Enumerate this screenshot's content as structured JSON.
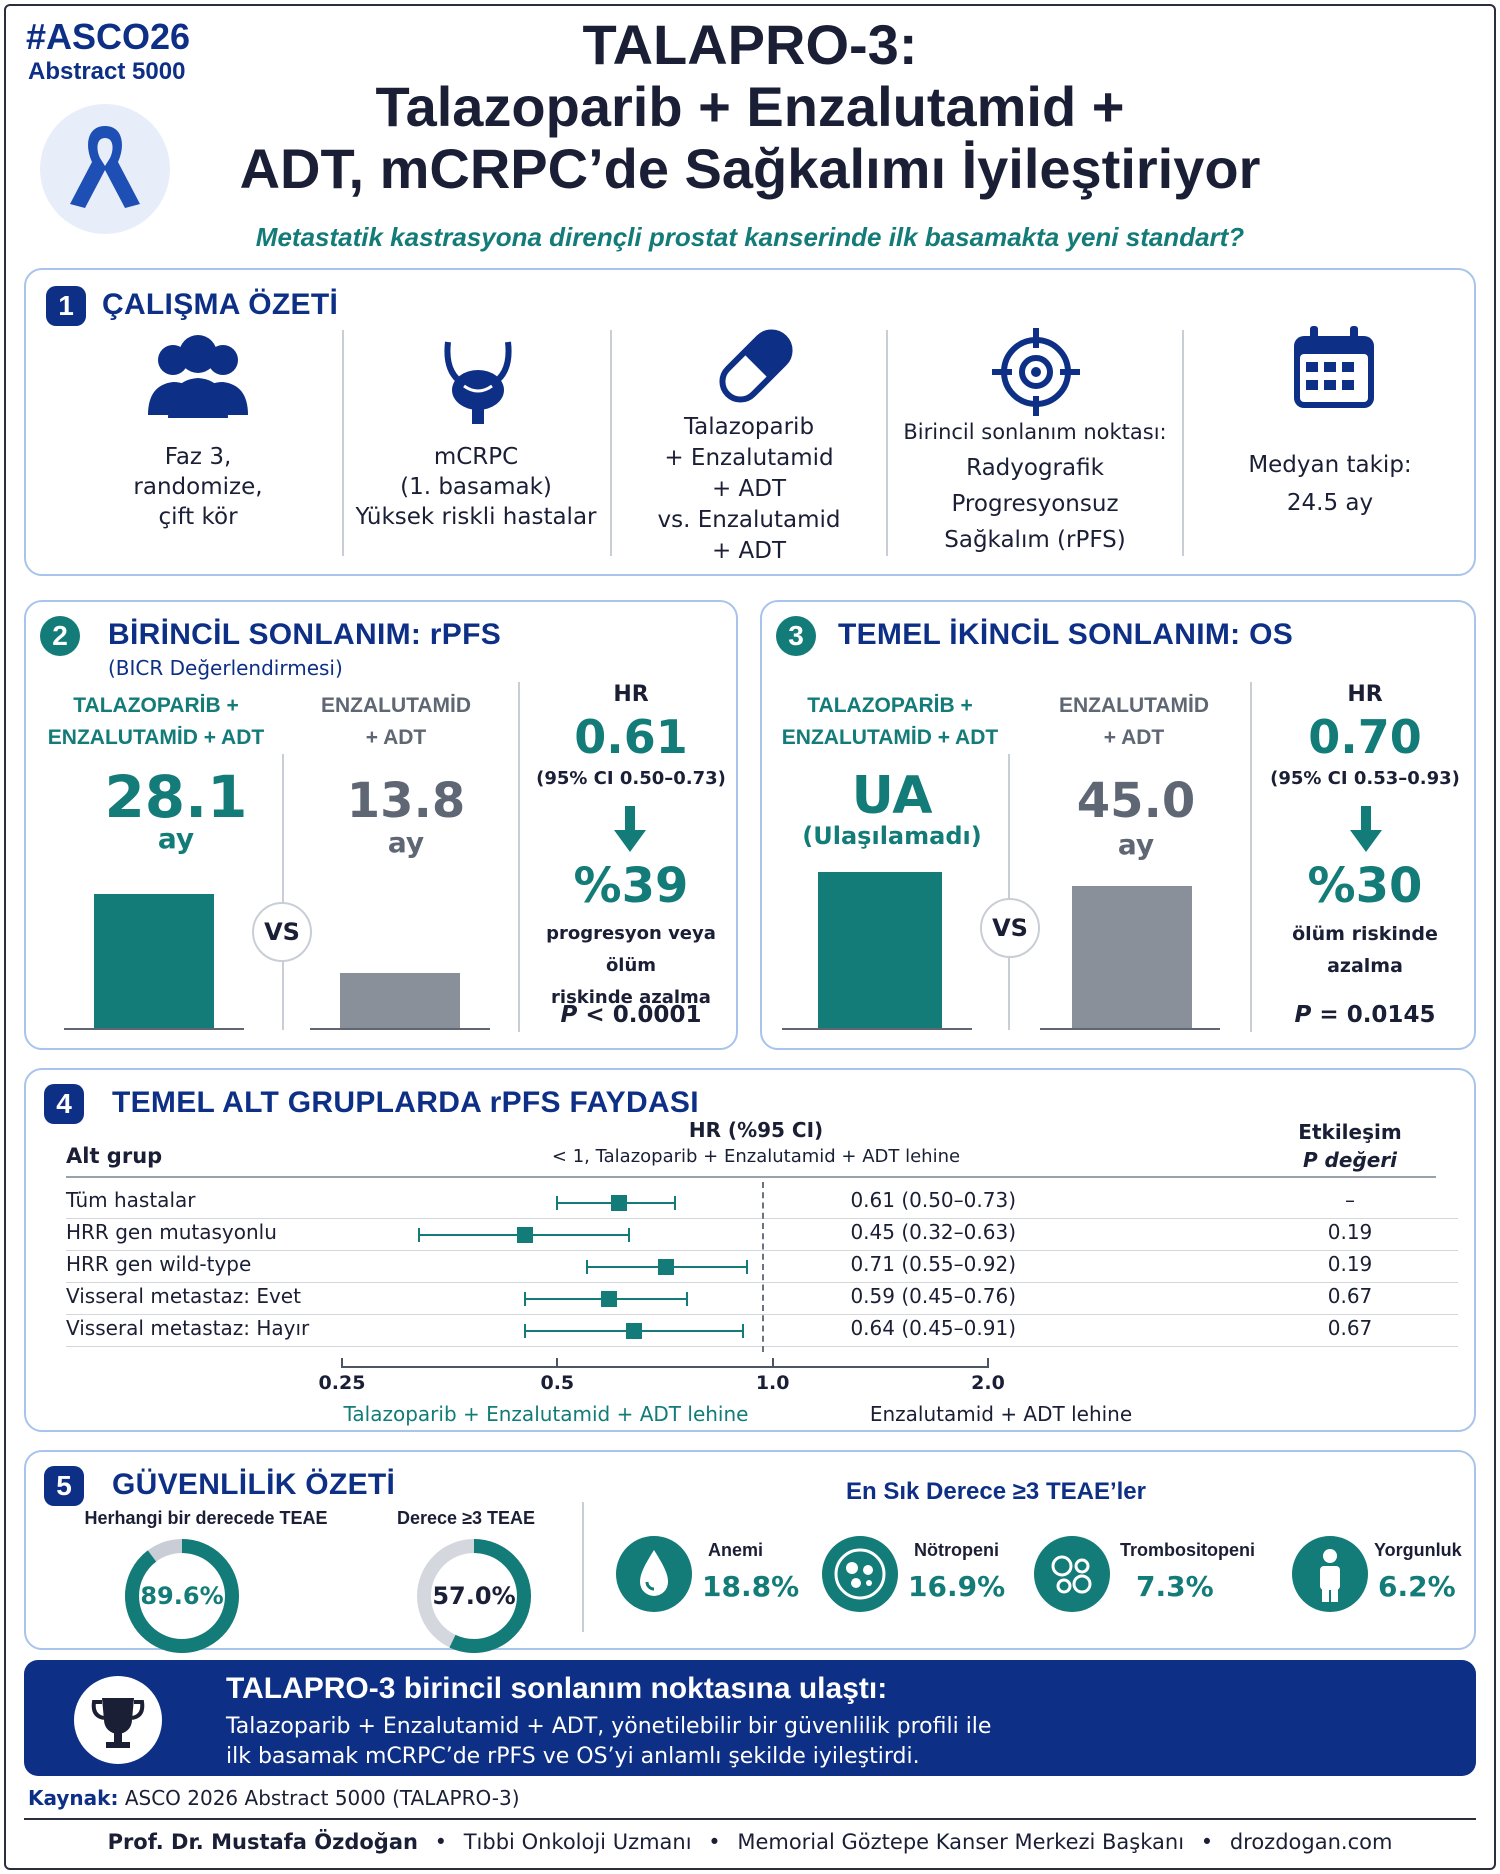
{
  "header": {
    "hashtag": "#ASCO26",
    "abstract": "Abstract 5000",
    "title_line1": "TALAPRO-3:",
    "title_line2": "Talazoparib + Enzalutamid +",
    "title_line3": "ADT, mCRPC’de Sağkalımı İyileştiriyor",
    "subtitle": "Metastatik kastrasyona dirençli prostat kanserinde ilk basamakta yeni standart?"
  },
  "overview": {
    "number": "1",
    "title": "ÇALIŞMA ÖZETİ",
    "items": [
      {
        "icon": "people-icon",
        "lines": [
          "Faz 3,",
          "randomize,",
          "çift kör"
        ]
      },
      {
        "icon": "prostate-icon",
        "lines": [
          "mCRPC",
          "(1. basamak)",
          "Yüksek riskli hastalar"
        ]
      },
      {
        "icon": "capsule-icon",
        "lines": [
          "Talazoparib",
          "+ Enzalutamid",
          "+ ADT",
          "vs. Enzalutamid",
          "+ ADT"
        ]
      },
      {
        "icon": "target-icon",
        "lines": [
          "Birincil sonlanım noktası:",
          "Radyografik",
          "Progresyonsuz",
          "Sağkalım (rPFS)"
        ]
      },
      {
        "icon": "calendar-icon",
        "lines": [
          "Medyan takip:",
          "24.5 ay"
        ]
      }
    ]
  },
  "rpfs": {
    "number": "2",
    "title": "BİRİNCİL SONLANIM: rPFS",
    "subtitle": "(BICR Değerlendirmesi)",
    "arm1_label1": "TALAZOPARİB +",
    "arm1_label2": "ENZALUTAMİD + ADT",
    "arm1_value": "28.1",
    "arm1_unit": "ay",
    "arm1_months": 28.1,
    "arm2_label1": "ENZALUTAMİD",
    "arm2_label2": "+ ADT",
    "arm2_value": "13.8",
    "arm2_unit": "ay",
    "arm2_months": 13.8,
    "vs": "VS",
    "hr_label": "HR",
    "hr_value": "0.61",
    "hr_ci": "(95% CI 0.50–0.73)",
    "reduction": "%39",
    "reduction_text1": "progresyon veya ölüm",
    "reduction_text2": "riskinde azalma",
    "p_label": "P",
    "p_value": " < 0.0001"
  },
  "os": {
    "number": "3",
    "title": "TEMEL İKİNCİL SONLANIM: OS",
    "arm1_label1": "TALAZOPARİB +",
    "arm1_label2": "ENZALUTAMİD + ADT",
    "arm1_value": "UA",
    "arm1_unit": "(Ulaşılamadı)",
    "arm2_label1": "ENZALUTAMİD",
    "arm2_label2": "+ ADT",
    "arm2_value": "45.0",
    "arm2_unit": "ay",
    "vs": "VS",
    "hr_label": "HR",
    "hr_value": "0.70",
    "hr_ci": "(95% CI 0.53–0.93)",
    "reduction": "%30",
    "reduction_text1": "ölüm riskinde",
    "reduction_text2": "azalma",
    "p_label": "P",
    "p_value": " = 0.0145"
  },
  "subgroups": {
    "number": "4",
    "title": "TEMEL ALT GRUPLARDA rPFS FAYDASI",
    "col_subgroup": "Alt grup",
    "col_hr": "HR (%95 CI)",
    "col_hr_note": "< 1, Talazoparib + Enzalutamid + ADT lehine",
    "col_p1": "Etkileşim",
    "col_p2": "P değeri",
    "axis_favors_left": "Talazoparib + Enzalutamid + ADT lehine",
    "axis_favors_right": "Enzalutamid + ADT lehine",
    "rows": [
      {
        "label": "Tüm hastalar",
        "hr_text": "0.61 (0.50–0.73)",
        "p": "–"
      },
      {
        "label": "HRR gen mutasyonlu",
        "hr_text": "0.45 (0.32–0.63)",
        "p": "0.19"
      },
      {
        "label": "HRR gen wild-type",
        "hr_text": "0.71 (0.55–0.92)",
        "p": "0.19"
      },
      {
        "label": "Visseral metastaz: Evet",
        "hr_text": "0.59 (0.45–0.76)",
        "p": "0.67"
      },
      {
        "label": "Visseral metastaz: Hayır",
        "hr_text": "0.64 (0.45–0.91)",
        "p": "0.67"
      }
    ]
  },
  "chart_data": {
    "type": "scatter",
    "subtype": "forest-plot",
    "scale": "log",
    "xticks": [
      "0.25",
      "0.5",
      "1.0",
      "2.0"
    ],
    "xlim": [
      0.25,
      2.0
    ],
    "reference_line": 1.0,
    "series": [
      {
        "category": "Tüm hastalar",
        "hr": 0.61,
        "lo": 0.5,
        "hi": 0.73
      },
      {
        "category": "HRR gen mutasyonlu",
        "hr": 0.45,
        "lo": 0.32,
        "hi": 0.63
      },
      {
        "category": "HRR gen wild-type",
        "hr": 0.71,
        "lo": 0.55,
        "hi": 0.92
      },
      {
        "category": "Visseral metastaz: Evet",
        "hr": 0.59,
        "lo": 0.45,
        "hi": 0.76
      },
      {
        "category": "Visseral metastaz: Hayır",
        "hr": 0.64,
        "lo": 0.45,
        "hi": 0.91
      }
    ]
  },
  "safety": {
    "number": "5",
    "title": "GÜVENLİLİK ÖZETİ",
    "any_label": "Herhangi bir derecede TEAE",
    "any_value": "89.6%",
    "any_fraction": 0.896,
    "g3_label": "Derece ≥3 TEAE",
    "g3_value": "57.0%",
    "g3_fraction": 0.57,
    "common_title": "En Sık Derece ≥3 TEAE’ler",
    "events": [
      {
        "icon": "drop-icon",
        "name": "Anemi",
        "value": "18.8%"
      },
      {
        "icon": "cells-icon",
        "name": "Nötropeni",
        "value": "16.9%"
      },
      {
        "icon": "platelets-icon",
        "name": "Trombositopeni",
        "value": "7.3%"
      },
      {
        "icon": "person-icon",
        "name": "Yorgunluk",
        "value": "6.2%"
      }
    ]
  },
  "conclusion": {
    "title": "TALAPRO-3 birincil sonlanım noktasına ulaştı:",
    "line1": "Talazoparib + Enzalutamid + ADT, yönetilebilir bir güvenlilik profili ile",
    "line2": "ilk basamak mCRPC’de rPFS ve OS’yi anlamlı şekilde iyileştirdi."
  },
  "source": {
    "label": "Kaynak:",
    "text": "ASCO 2026 Abstract 5000 (TALAPRO-3)"
  },
  "footer": {
    "name": "Prof. Dr. Mustafa Özdoğan",
    "role": "Tıbbi Onkoloji Uzmanı",
    "org": "Memorial Göztepe Kanser Merkezi Başkanı",
    "site": "drozdogan.com",
    "sep": "•"
  },
  "colors": {
    "navy": "#0d2f86",
    "teal": "#137b78",
    "grey": "#8a9099",
    "border": "#a8c4ea"
  }
}
